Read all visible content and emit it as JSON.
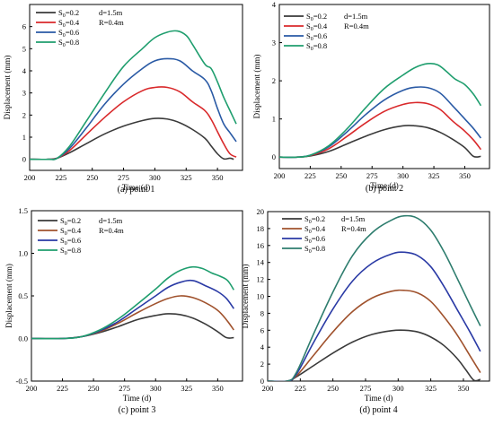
{
  "chart_data": [
    {
      "type": "line",
      "caption": "(a) point 1",
      "xlabel": "Time (d)",
      "ylabel": "Displacement (mm)",
      "xlim": [
        200,
        370
      ],
      "ylim": [
        -0.5,
        7
      ],
      "xticks": [
        200,
        225,
        250,
        275,
        300,
        325,
        350
      ],
      "yticks": [
        0,
        1,
        2,
        3,
        4,
        5,
        6
      ],
      "annotations": [
        "d=1.5m",
        "R=0.4m"
      ],
      "series": [
        {
          "sub": "0",
          "name": "S₀=0.2",
          "color": "#3a3a3a",
          "x": [
            200,
            215,
            222,
            232,
            245,
            260,
            275,
            290,
            300,
            310,
            320,
            330,
            340,
            345,
            350,
            355,
            360,
            363
          ],
          "y": [
            0,
            0,
            0.05,
            0.3,
            0.7,
            1.15,
            1.5,
            1.75,
            1.85,
            1.82,
            1.65,
            1.35,
            0.95,
            0.6,
            0.25,
            0.02,
            0.05,
            0
          ]
        },
        {
          "sub": "0",
          "name": "S₀=0.4",
          "color": "#d9292b",
          "x": [
            200,
            215,
            222,
            232,
            245,
            260,
            275,
            290,
            300,
            310,
            320,
            330,
            340,
            345,
            350,
            355,
            360,
            365
          ],
          "y": [
            0,
            0,
            0.05,
            0.4,
            1.1,
            1.9,
            2.6,
            3.1,
            3.25,
            3.25,
            3.05,
            2.6,
            2.2,
            1.8,
            1.25,
            0.7,
            0.25,
            0.1
          ]
        },
        {
          "sub": "0",
          "name": "S₀=0.6",
          "color": "#2a5aa5",
          "x": [
            200,
            215,
            222,
            232,
            245,
            260,
            275,
            290,
            300,
            310,
            320,
            330,
            340,
            345,
            350,
            355,
            360,
            365
          ],
          "y": [
            0,
            0,
            0.05,
            0.5,
            1.4,
            2.5,
            3.4,
            4.1,
            4.45,
            4.55,
            4.45,
            4.0,
            3.6,
            3.1,
            2.3,
            1.6,
            1.2,
            0.8
          ]
        },
        {
          "sub": "0",
          "name": "S₀=0.8",
          "color": "#1f9e6e",
          "x": [
            200,
            215,
            222,
            232,
            245,
            260,
            275,
            290,
            300,
            310,
            318,
            325,
            330,
            340,
            345,
            350,
            355,
            360,
            365
          ],
          "y": [
            0,
            0,
            0.05,
            0.6,
            1.7,
            3.0,
            4.2,
            5.0,
            5.5,
            5.75,
            5.8,
            5.6,
            5.2,
            4.3,
            4.1,
            3.5,
            2.8,
            2.2,
            1.6
          ]
        }
      ]
    },
    {
      "type": "line",
      "caption": "(b) point 2",
      "xlabel": "Time (d)",
      "ylabel": "Displacement (mm)",
      "xlim": [
        200,
        370
      ],
      "ylim": [
        -0.3,
        4
      ],
      "xticks": [
        200,
        225,
        250,
        275,
        300,
        325,
        350
      ],
      "yticks": [
        0,
        1,
        2,
        3,
        4
      ],
      "annotations": [
        "d=1.5m",
        "R=0.4m"
      ],
      "series": [
        {
          "sub": "0",
          "name": "S₀=0.2",
          "color": "#3a3a3a",
          "x": [
            200,
            215,
            225,
            240,
            255,
            270,
            285,
            300,
            310,
            320,
            330,
            340,
            350,
            357,
            363
          ],
          "y": [
            0,
            0,
            0.03,
            0.15,
            0.35,
            0.55,
            0.72,
            0.82,
            0.82,
            0.77,
            0.65,
            0.47,
            0.25,
            0.02,
            0.02
          ]
        },
        {
          "sub": "0",
          "name": "S₀=0.4",
          "color": "#d9292b",
          "x": [
            200,
            215,
            225,
            240,
            255,
            270,
            285,
            300,
            310,
            320,
            330,
            340,
            350,
            357,
            363
          ],
          "y": [
            0,
            0,
            0.04,
            0.22,
            0.55,
            0.9,
            1.2,
            1.38,
            1.43,
            1.4,
            1.25,
            0.95,
            0.68,
            0.45,
            0.2
          ]
        },
        {
          "sub": "0",
          "name": "S₀=0.6",
          "color": "#2a5aa5",
          "x": [
            200,
            215,
            225,
            240,
            255,
            270,
            285,
            300,
            310,
            320,
            330,
            340,
            350,
            357,
            363
          ],
          "y": [
            0,
            0,
            0.05,
            0.27,
            0.67,
            1.12,
            1.5,
            1.75,
            1.83,
            1.82,
            1.68,
            1.35,
            1.0,
            0.75,
            0.5
          ]
        },
        {
          "sub": "0",
          "name": "S₀=0.8",
          "color": "#1f9e6e",
          "x": [
            200,
            215,
            225,
            240,
            255,
            270,
            285,
            300,
            310,
            320,
            328,
            335,
            342,
            350,
            357,
            363
          ],
          "y": [
            0,
            0,
            0.05,
            0.3,
            0.75,
            1.3,
            1.8,
            2.15,
            2.35,
            2.45,
            2.42,
            2.25,
            2.05,
            1.9,
            1.65,
            1.35
          ]
        }
      ]
    },
    {
      "type": "line",
      "caption": "(c) point 3",
      "xlabel": "Time (d)",
      "ylabel": "Displacement (mm)",
      "xlim": [
        200,
        370
      ],
      "ylim": [
        -0.5,
        1.5
      ],
      "xticks": [
        200,
        225,
        250,
        275,
        300,
        325,
        350
      ],
      "yticks": [
        -0.5,
        0.0,
        0.5,
        1.0,
        1.5
      ],
      "annotations": [
        "d=1.5m",
        "R=0.4m"
      ],
      "series": [
        {
          "sub": "0",
          "name": "S₀=0.2",
          "color": "#3a3a3a",
          "x": [
            200,
            225,
            240,
            255,
            270,
            285,
            300,
            310,
            320,
            330,
            340,
            350,
            357,
            363
          ],
          "y": [
            0,
            0,
            0.02,
            0.07,
            0.14,
            0.22,
            0.27,
            0.29,
            0.28,
            0.24,
            0.17,
            0.08,
            0.01,
            0.01
          ]
        },
        {
          "sub": "0",
          "name": "S₀=0.4",
          "color": "#a0522d",
          "x": [
            200,
            225,
            240,
            255,
            270,
            285,
            300,
            310,
            320,
            330,
            340,
            350,
            357,
            363
          ],
          "y": [
            0,
            0,
            0.02,
            0.08,
            0.18,
            0.3,
            0.41,
            0.47,
            0.5,
            0.48,
            0.42,
            0.33,
            0.22,
            0.1
          ]
        },
        {
          "sub": "0",
          "name": "S₀=0.6",
          "color": "#2a3aa5",
          "x": [
            200,
            225,
            240,
            255,
            270,
            285,
            300,
            310,
            320,
            330,
            340,
            350,
            357,
            363
          ],
          "y": [
            0,
            0,
            0.02,
            0.09,
            0.2,
            0.35,
            0.5,
            0.6,
            0.66,
            0.68,
            0.62,
            0.55,
            0.47,
            0.35
          ]
        },
        {
          "sub": "0",
          "name": "S₀=0.8",
          "color": "#1f9e6e",
          "x": [
            200,
            225,
            240,
            255,
            270,
            285,
            300,
            310,
            320,
            330,
            338,
            345,
            352,
            358,
            363
          ],
          "y": [
            0,
            0,
            0.02,
            0.1,
            0.23,
            0.4,
            0.58,
            0.71,
            0.8,
            0.84,
            0.82,
            0.77,
            0.73,
            0.68,
            0.57
          ]
        }
      ]
    },
    {
      "type": "line",
      "caption": "(d) point 4",
      "xlabel": "Time (d)",
      "ylabel": "Displacement (mm)",
      "xlim": [
        200,
        370
      ],
      "ylim": [
        0,
        20
      ],
      "xticks": [
        200,
        225,
        250,
        275,
        300,
        325,
        350
      ],
      "yticks": [
        0,
        2,
        4,
        6,
        8,
        10,
        12,
        14,
        16,
        18,
        20
      ],
      "annotations": [
        "d=1.5m",
        "R=0.4m"
      ],
      "series": [
        {
          "sub": "0",
          "name": "S₀=0.2",
          "color": "#3a3a3a",
          "x": [
            200,
            215,
            222,
            235,
            250,
            265,
            280,
            295,
            305,
            315,
            325,
            335,
            345,
            352,
            358,
            363
          ],
          "y": [
            0,
            0,
            0.5,
            1.8,
            3.3,
            4.6,
            5.5,
            5.95,
            6.0,
            5.8,
            5.2,
            4.2,
            2.7,
            1.3,
            0.1,
            0.2
          ]
        },
        {
          "sub": "0",
          "name": "S₀=0.4",
          "color": "#a0522d",
          "x": [
            200,
            215,
            222,
            235,
            250,
            265,
            280,
            295,
            305,
            315,
            325,
            335,
            345,
            355,
            363
          ],
          "y": [
            0,
            0,
            0.6,
            3.0,
            5.8,
            8.2,
            9.8,
            10.6,
            10.7,
            10.4,
            9.4,
            7.6,
            5.5,
            3.0,
            1.0
          ]
        },
        {
          "sub": "0",
          "name": "S₀=0.6",
          "color": "#2a3aa5",
          "x": [
            200,
            215,
            222,
            235,
            250,
            265,
            280,
            295,
            305,
            315,
            325,
            335,
            345,
            355,
            363
          ],
          "y": [
            0,
            0,
            0.8,
            4.5,
            8.5,
            11.8,
            13.9,
            15.0,
            15.2,
            14.8,
            13.5,
            11.2,
            8.5,
            5.8,
            3.5
          ]
        },
        {
          "sub": "0",
          "name": "S₀=0.8",
          "color": "#2e7d6e",
          "x": [
            200,
            215,
            222,
            235,
            250,
            265,
            280,
            295,
            305,
            315,
            325,
            335,
            345,
            355,
            363
          ],
          "y": [
            0,
            0,
            1.0,
            5.5,
            10.5,
            14.8,
            17.5,
            19.0,
            19.5,
            19.2,
            17.8,
            15.3,
            12.2,
            9.0,
            6.5
          ]
        }
      ]
    }
  ]
}
